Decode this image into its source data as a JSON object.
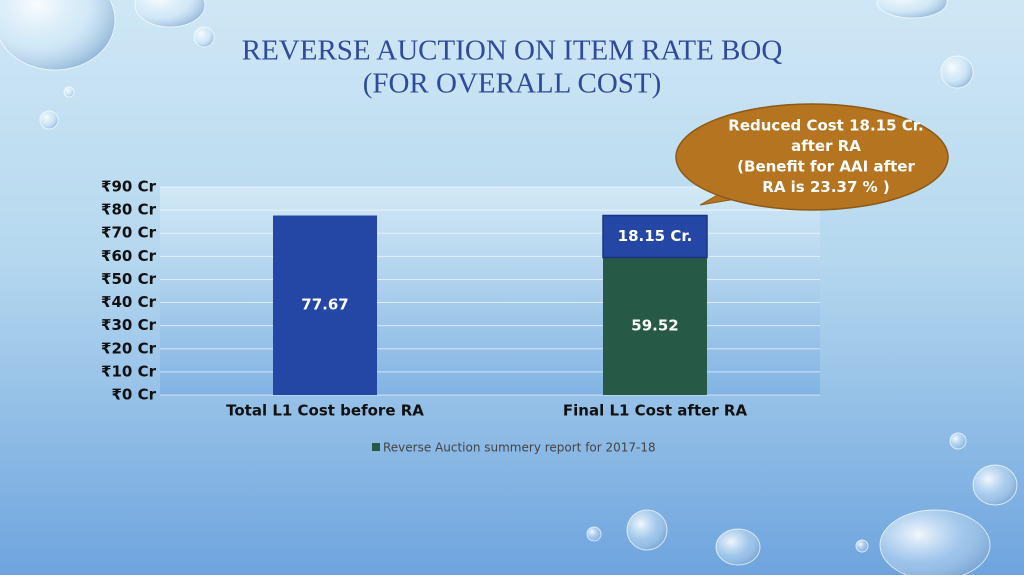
{
  "chart_data": {
    "type": "bar",
    "title": [
      "REVERSE AUCTION ON ITEM RATE BOQ",
      "(FOR OVERALL COST)"
    ],
    "categories": [
      "Total L1 Cost before RA",
      "Final L1 Cost after RA"
    ],
    "series": [
      {
        "name": "Reverse Auction summery report for 2017-18",
        "color": "#275a46",
        "bar_colors": [
          "#2447a6",
          "#275a46"
        ],
        "values": [
          77.67,
          59.52
        ]
      },
      {
        "color": "#2447a6",
        "values": [
          null,
          18.15
        ],
        "value_labels": [
          null,
          "18.15 Cr."
        ]
      }
    ],
    "stacked": true,
    "ylim": [
      0,
      90
    ],
    "yticks": [
      {
        "value": 0,
        "label": "₹0 Cr"
      },
      {
        "value": 10,
        "label": "₹10 Cr"
      },
      {
        "value": 20,
        "label": "₹20 Cr"
      },
      {
        "value": 30,
        "label": "₹30 Cr"
      },
      {
        "value": 40,
        "label": "₹40 Cr"
      },
      {
        "value": 50,
        "label": "₹50 Cr"
      },
      {
        "value": 60,
        "label": "₹60 Cr"
      },
      {
        "value": 70,
        "label": "₹70 Cr"
      },
      {
        "value": 80,
        "label": "₹80 Cr"
      },
      {
        "value": 90,
        "label": "₹90 Cr"
      }
    ],
    "grid": true,
    "legend": "bottom",
    "callout": [
      "Reduced Cost 18.15 Cr.",
      "after RA",
      "(Benefit for AAI after",
      "RA is 23.37 % )"
    ]
  }
}
